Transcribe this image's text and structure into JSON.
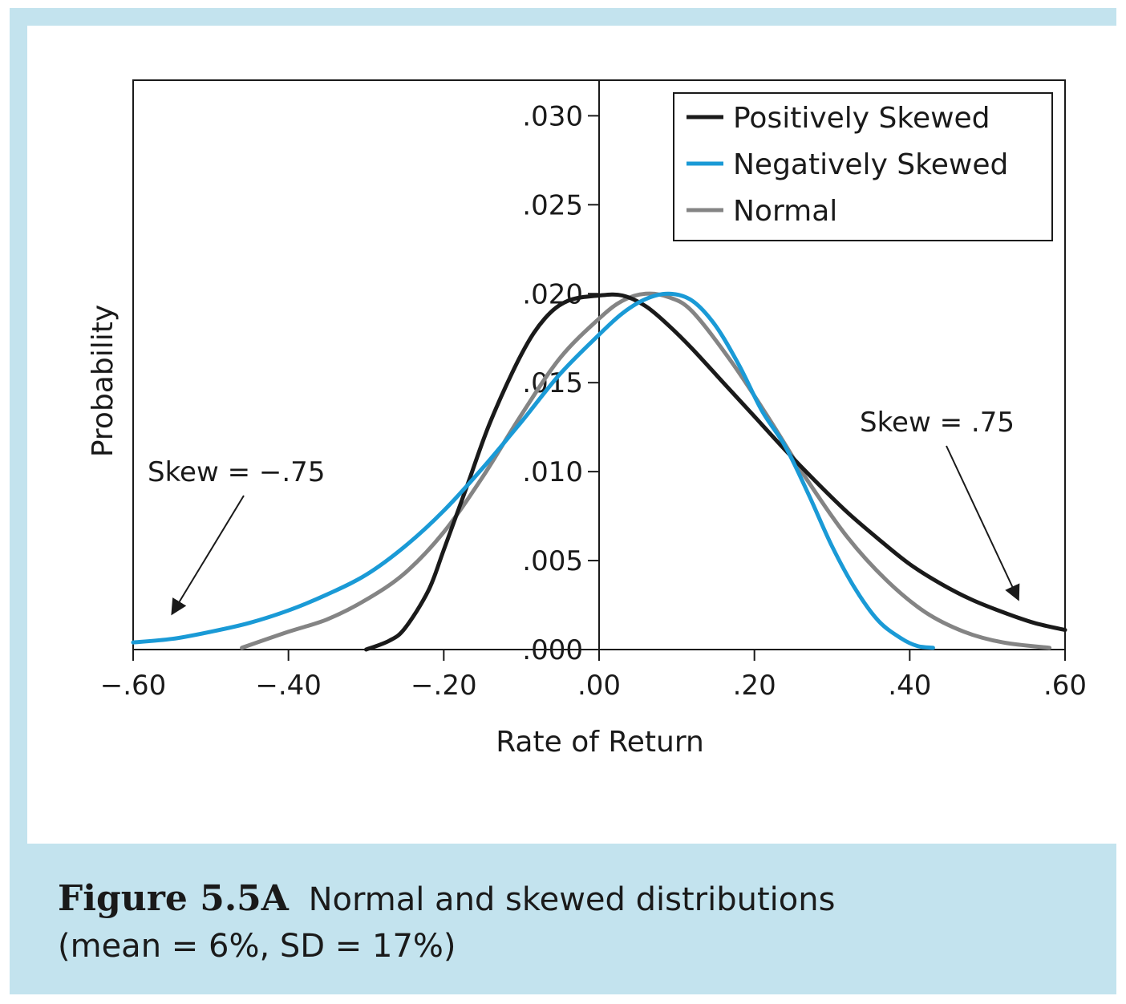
{
  "caption": {
    "label": "Figure 5.5A",
    "line1": "Normal and skewed distributions",
    "line2": "(mean = 6%, SD = 17%)"
  },
  "chart_data": {
    "type": "line",
    "xlabel": "Rate of Return",
    "ylabel": "Probability",
    "xlim": [
      -0.6,
      0.6
    ],
    "ylim": [
      0,
      0.032
    ],
    "x_ticks": [
      -0.6,
      -0.4,
      -0.2,
      0.0,
      0.2,
      0.4,
      0.6
    ],
    "x_tick_labels": [
      "−.60",
      "−.40",
      "−.20",
      ".00",
      ".20",
      ".40",
      ".60"
    ],
    "y_ticks": [
      0.0,
      0.005,
      0.01,
      0.015,
      0.02,
      0.025,
      0.03
    ],
    "y_tick_labels": [
      ".000",
      ".005",
      ".010",
      ".015",
      ".020",
      ".025",
      ".030"
    ],
    "grid": false,
    "legend_position": "top-right",
    "series": [
      {
        "name": "Positively Skewed",
        "color": "#1a1a1a",
        "x": [
          -0.3,
          -0.27,
          -0.25,
          -0.22,
          -0.2,
          -0.17,
          -0.14,
          -0.1,
          -0.07,
          -0.04,
          0.0,
          0.03,
          0.06,
          0.09,
          0.12,
          0.16,
          0.2,
          0.24,
          0.28,
          0.32,
          0.36,
          0.4,
          0.44,
          0.48,
          0.52,
          0.56,
          0.6
        ],
        "y": [
          0.0,
          0.0005,
          0.0012,
          0.0033,
          0.0056,
          0.0092,
          0.0128,
          0.0166,
          0.0186,
          0.0196,
          0.0199,
          0.0199,
          0.0193,
          0.0182,
          0.0169,
          0.015,
          0.0131,
          0.0112,
          0.0094,
          0.0077,
          0.0062,
          0.0048,
          0.0037,
          0.0028,
          0.0021,
          0.0015,
          0.0011
        ]
      },
      {
        "name": "Negatively Skewed",
        "color": "#1a9ad6",
        "x": [
          -0.6,
          -0.55,
          -0.5,
          -0.45,
          -0.4,
          -0.35,
          -0.3,
          -0.25,
          -0.2,
          -0.15,
          -0.1,
          -0.05,
          0.0,
          0.03,
          0.06,
          0.09,
          0.12,
          0.15,
          0.18,
          0.21,
          0.24,
          0.27,
          0.3,
          0.33,
          0.36,
          0.39,
          0.41,
          0.43
        ],
        "y": [
          0.0004,
          0.0006,
          0.001,
          0.0015,
          0.0022,
          0.0031,
          0.0042,
          0.0058,
          0.0078,
          0.0102,
          0.0128,
          0.0155,
          0.0177,
          0.0189,
          0.0197,
          0.02,
          0.0196,
          0.0182,
          0.016,
          0.0134,
          0.0114,
          0.0087,
          0.0058,
          0.0034,
          0.0016,
          0.0006,
          0.0002,
          0.0001
        ]
      },
      {
        "name": "Normal",
        "color": "#848484",
        "x": [
          -0.46,
          -0.4,
          -0.35,
          -0.3,
          -0.25,
          -0.2,
          -0.15,
          -0.1,
          -0.05,
          0.0,
          0.03,
          0.06,
          0.09,
          0.12,
          0.17,
          0.22,
          0.27,
          0.32,
          0.37,
          0.42,
          0.47,
          0.52,
          0.58
        ],
        "y": [
          0.0001,
          0.001,
          0.0017,
          0.0028,
          0.0043,
          0.0066,
          0.0097,
          0.0132,
          0.0164,
          0.0186,
          0.0196,
          0.02,
          0.0198,
          0.019,
          0.0162,
          0.0129,
          0.0094,
          0.0063,
          0.0039,
          0.0021,
          0.001,
          0.0004,
          0.0001
        ]
      }
    ],
    "annotations": [
      {
        "text": "Skew = −.75",
        "arrow_to": [
          -0.55,
          0.002
        ]
      },
      {
        "text": "Skew = .75",
        "arrow_to": [
          0.54,
          0.0028
        ]
      }
    ]
  }
}
